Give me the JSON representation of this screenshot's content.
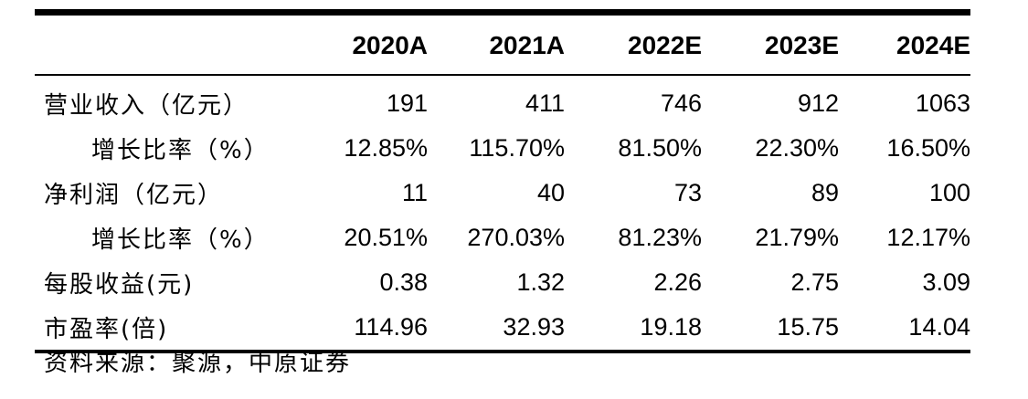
{
  "table": {
    "columns": [
      "",
      "2020A",
      "2021A",
      "2022E",
      "2023E",
      "2024E"
    ],
    "rows": [
      {
        "label": "营业收入（亿元）",
        "indent": false,
        "values": [
          "191",
          "411",
          "746",
          "912",
          "1063"
        ]
      },
      {
        "label": "增长比率（%）",
        "indent": true,
        "values": [
          "12.85%",
          "115.70%",
          "81.50%",
          "22.30%",
          "16.50%"
        ]
      },
      {
        "label": "净利润（亿元）",
        "indent": false,
        "values": [
          "11",
          "40",
          "73",
          "89",
          "100"
        ]
      },
      {
        "label": "增长比率（%）",
        "indent": true,
        "values": [
          "20.51%",
          "270.03%",
          "81.23%",
          "21.79%",
          "12.17%"
        ]
      },
      {
        "label": "每股收益(元)",
        "indent": false,
        "values": [
          "0.38",
          "1.32",
          "2.26",
          "2.75",
          "3.09"
        ]
      },
      {
        "label": "市盈率(倍)",
        "indent": false,
        "values": [
          "114.96",
          "32.93",
          "19.18",
          "15.75",
          "14.04"
        ]
      }
    ]
  },
  "source": "资料来源：聚源，中原证券"
}
